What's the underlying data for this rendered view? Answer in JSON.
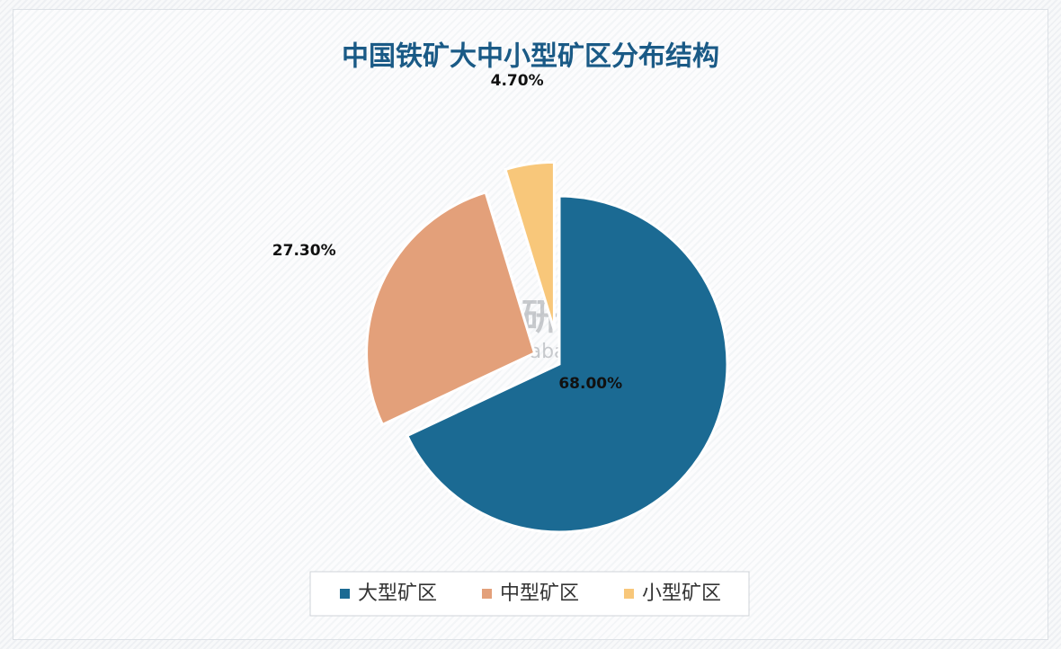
{
  "chart_data": {
    "type": "pie",
    "title": "中国铁矿大中小型矿区分布结构",
    "categories": [
      "大型矿区",
      "中型矿区",
      "小型矿区"
    ],
    "values": [
      68,
      27.3,
      4.7
    ],
    "value_labels": [
      "68.00%",
      "27.30%",
      "4.70%"
    ],
    "colors": [
      "#1b6a93",
      "#e3a07a",
      "#f8c77a"
    ],
    "legend": "bottom",
    "watermark": {
      "name": "观研报告网",
      "url": "chinabaogao.com"
    }
  }
}
